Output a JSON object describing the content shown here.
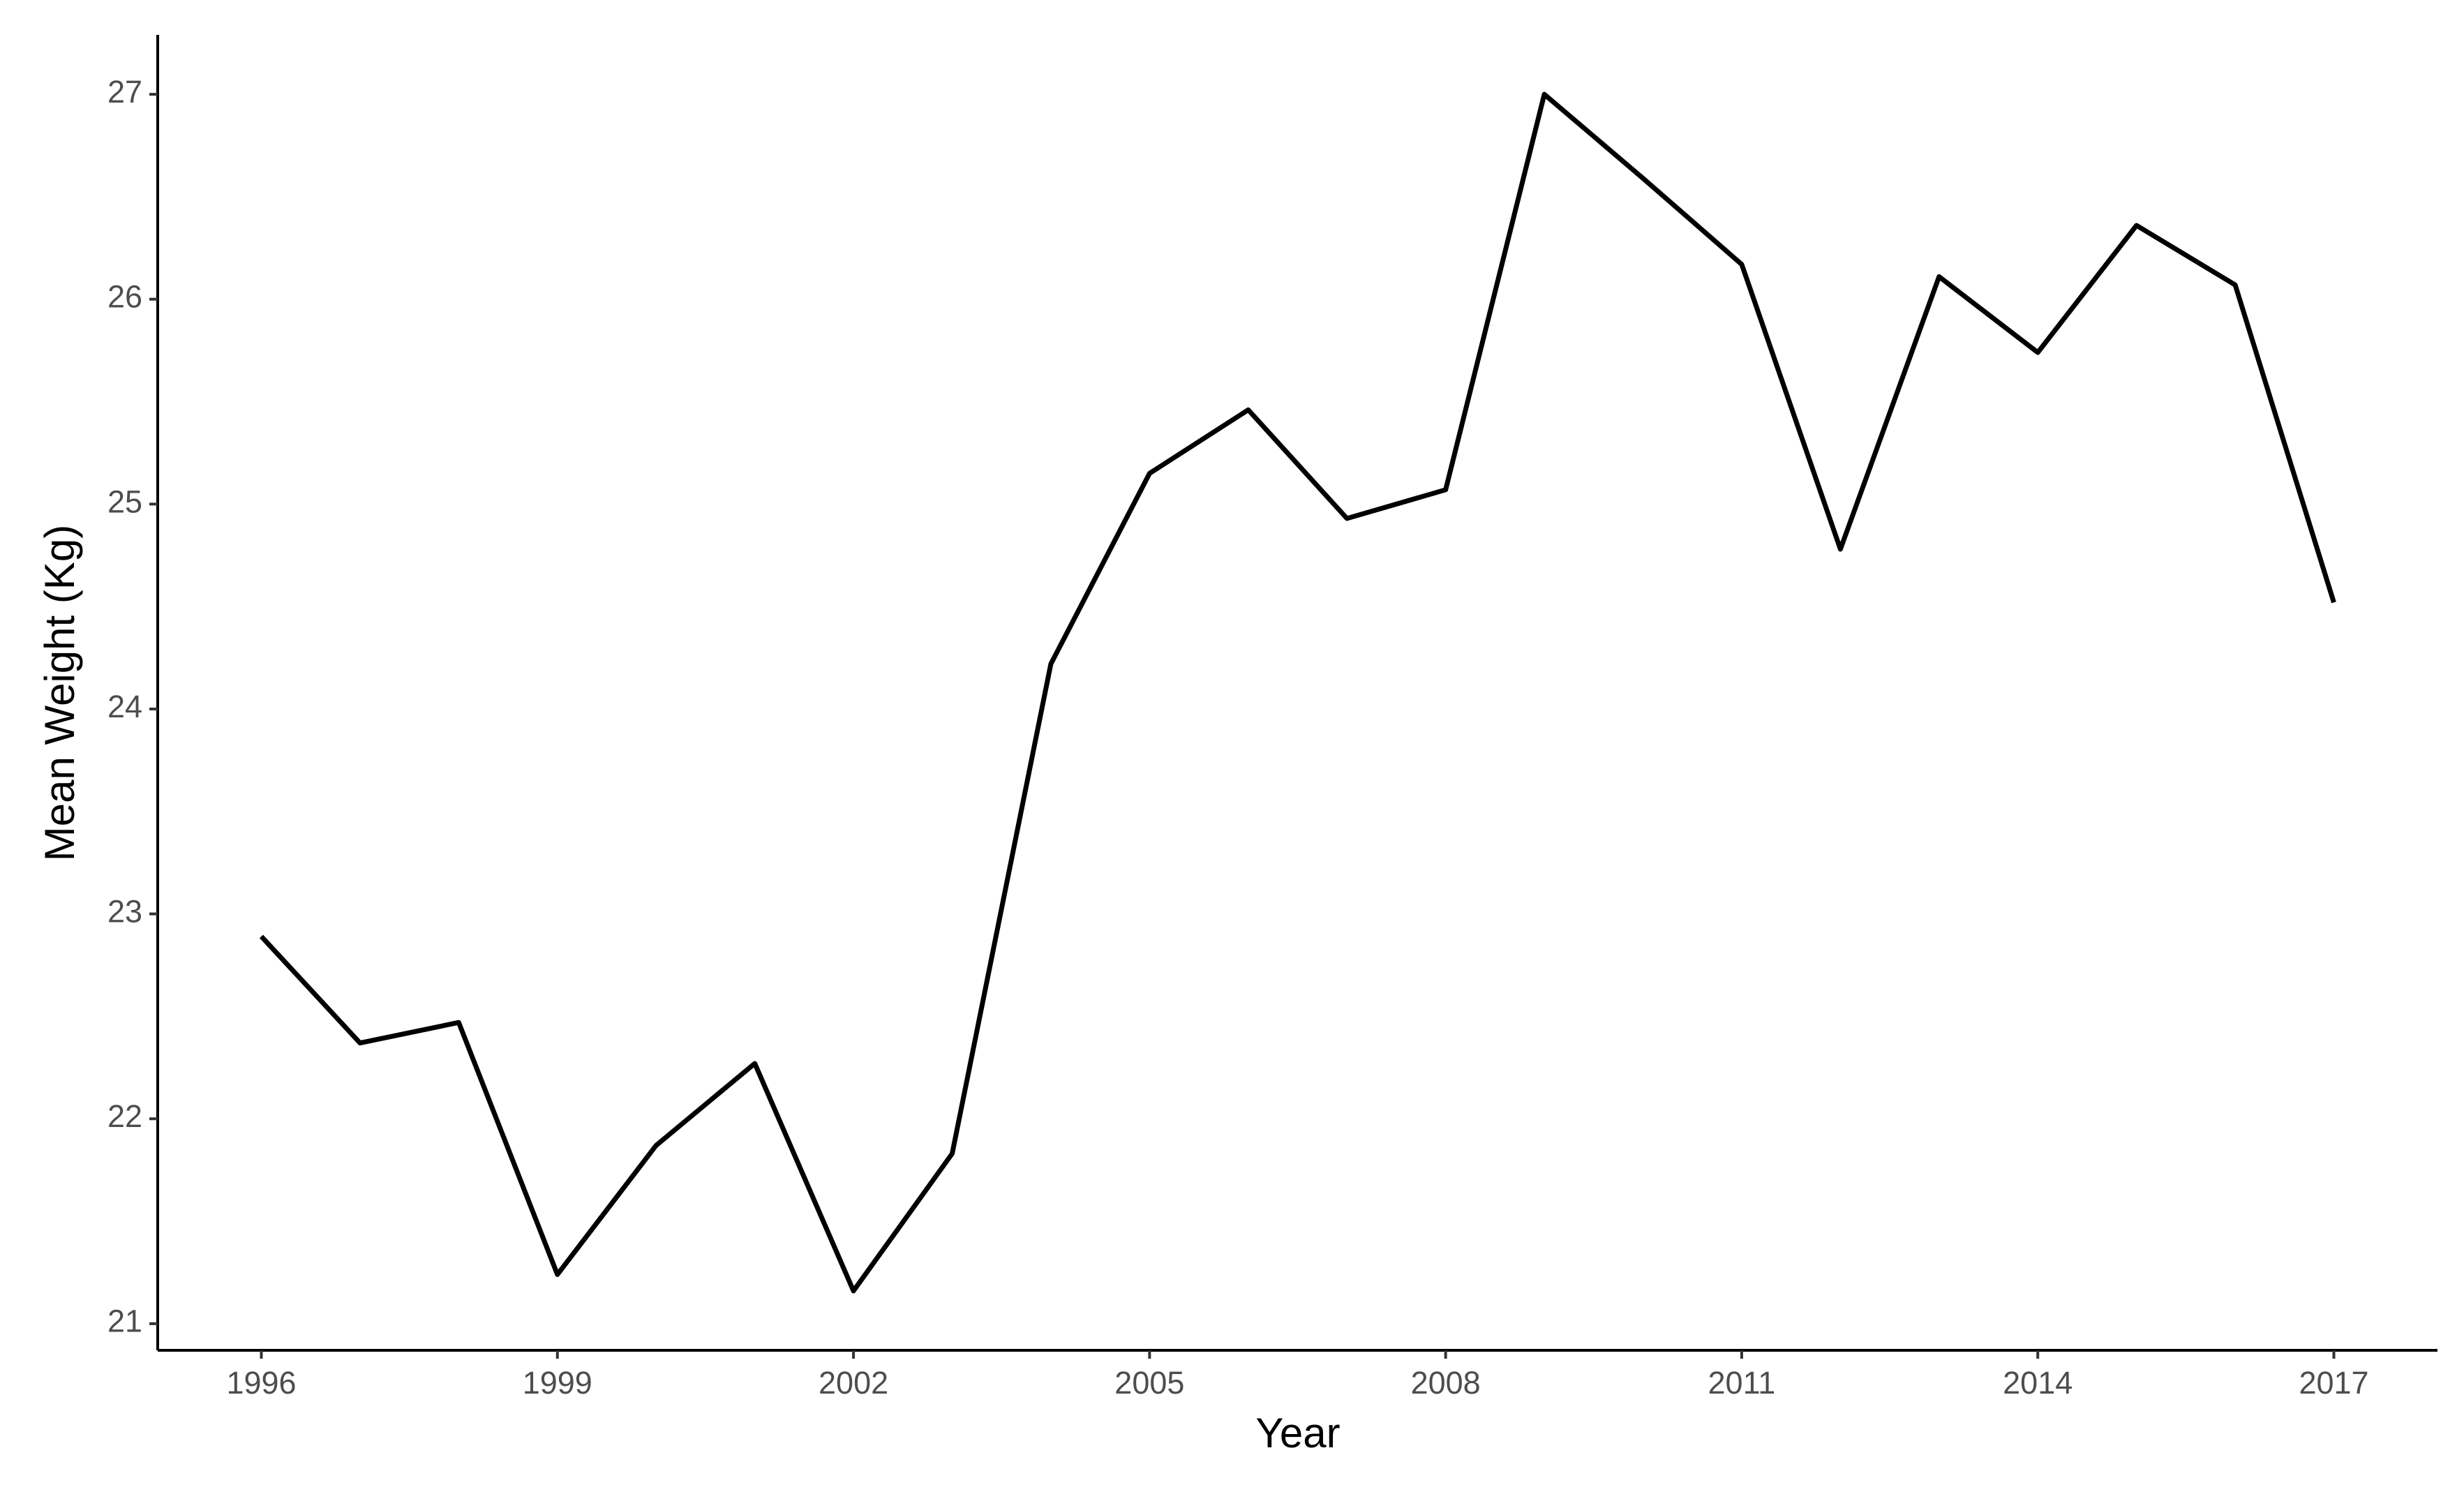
{
  "chart_data": {
    "type": "line",
    "x_label": "Year",
    "y_label": "Mean Weight (Kg)",
    "x": [
      1996,
      1997,
      1998,
      1999,
      2000,
      2001,
      2002,
      2003,
      2004,
      2005,
      2006,
      2007,
      2008,
      2009,
      2010,
      2011,
      2012,
      2013,
      2014,
      2015,
      2016,
      2017
    ],
    "values": [
      22.89,
      22.37,
      22.47,
      21.24,
      21.87,
      22.27,
      21.16,
      21.83,
      24.22,
      25.15,
      25.46,
      24.93,
      25.07,
      27.0,
      26.59,
      26.17,
      24.78,
      26.11,
      25.74,
      26.36,
      26.07,
      24.52
    ],
    "color": "#000000",
    "xlim": [
      1994.95,
      2018.05
    ],
    "xticks": [
      1996,
      1999,
      2002,
      2005,
      2008,
      2011,
      2014,
      2017
    ],
    "ylim": [
      20.87,
      27.29
    ],
    "yticks": [
      21,
      22,
      23,
      24,
      25,
      26,
      27
    ],
    "grid": false
  }
}
